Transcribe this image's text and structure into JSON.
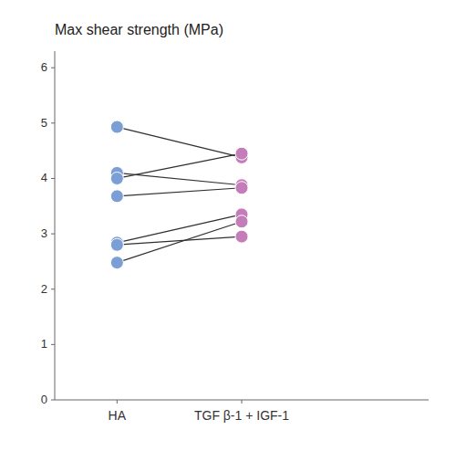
{
  "chart_data": {
    "type": "line",
    "title": "Max shear strength (MPa)",
    "categories": [
      "HA",
      "TGF β-1 + IGF-1"
    ],
    "series": [
      {
        "values": [
          4.93,
          4.38
        ]
      },
      {
        "values": [
          4.1,
          3.88
        ]
      },
      {
        "values": [
          4.0,
          4.45
        ]
      },
      {
        "values": [
          3.68,
          3.83
        ]
      },
      {
        "values": [
          2.84,
          3.35
        ]
      },
      {
        "values": [
          2.8,
          2.95
        ]
      },
      {
        "values": [
          2.48,
          3.22
        ]
      }
    ],
    "color": "#303030",
    "colors": [
      "#7B9FD4",
      "#C47DB8"
    ],
    "marker": "circle",
    "ylim": [
      0,
      6.3
    ],
    "yticks": [
      0,
      1,
      2,
      3,
      4,
      5,
      6
    ],
    "grid": false
  }
}
